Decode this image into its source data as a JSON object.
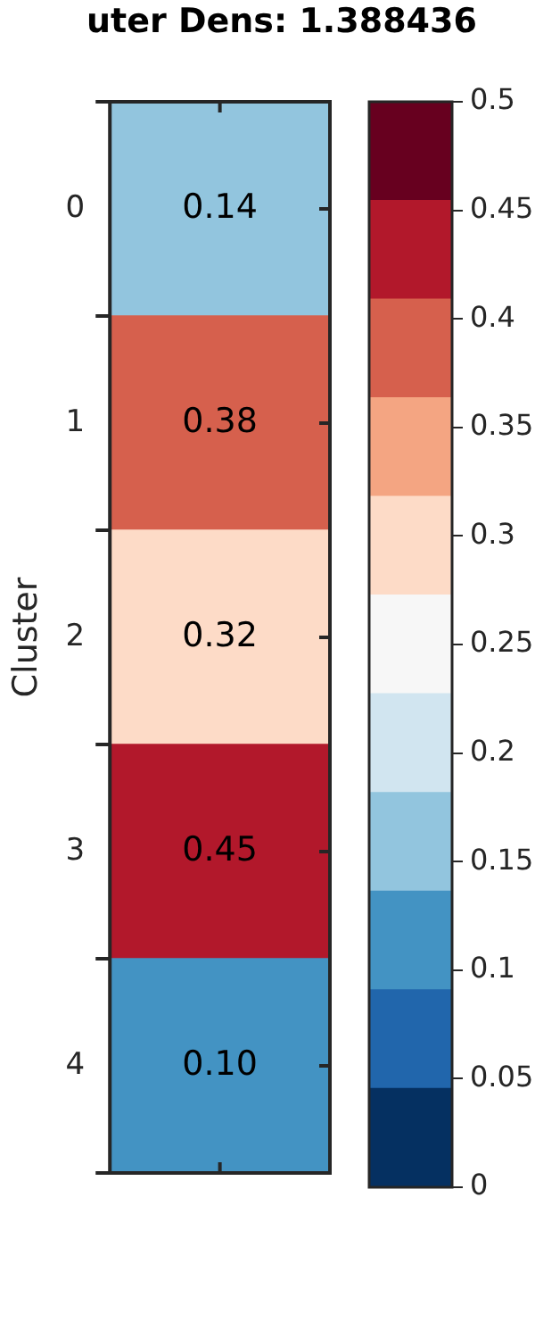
{
  "chart_data": {
    "type": "heatmap",
    "title": "uter Dens: 1.388436",
    "ylabel": "Cluster",
    "categories": [
      null
    ],
    "y_categories": [
      "0",
      "1",
      "2",
      "3",
      "4"
    ],
    "cells": [
      [
        0.14
      ],
      [
        0.38
      ],
      [
        0.318
      ],
      [
        0.45
      ],
      [
        0.1
      ]
    ],
    "cell_labels": [
      [
        "0.14"
      ],
      [
        "0.38"
      ],
      [
        "0.32"
      ],
      [
        "0.45"
      ],
      [
        "0.10"
      ]
    ],
    "data_labels": true,
    "clim": [
      0,
      0.5
    ],
    "cticks": [
      0,
      0.05,
      0.1,
      0.15,
      0.2,
      0.25,
      0.3,
      0.35,
      0.4,
      0.45,
      0.5
    ],
    "colors": [
      "#053061",
      "#2166ac",
      "#4393c3",
      "#92c5de",
      "#d1e5f0",
      "#f7f7f7",
      "#fddbc7",
      "#f4a582",
      "#d6604d",
      "#b2182b",
      "#67001f"
    ]
  }
}
